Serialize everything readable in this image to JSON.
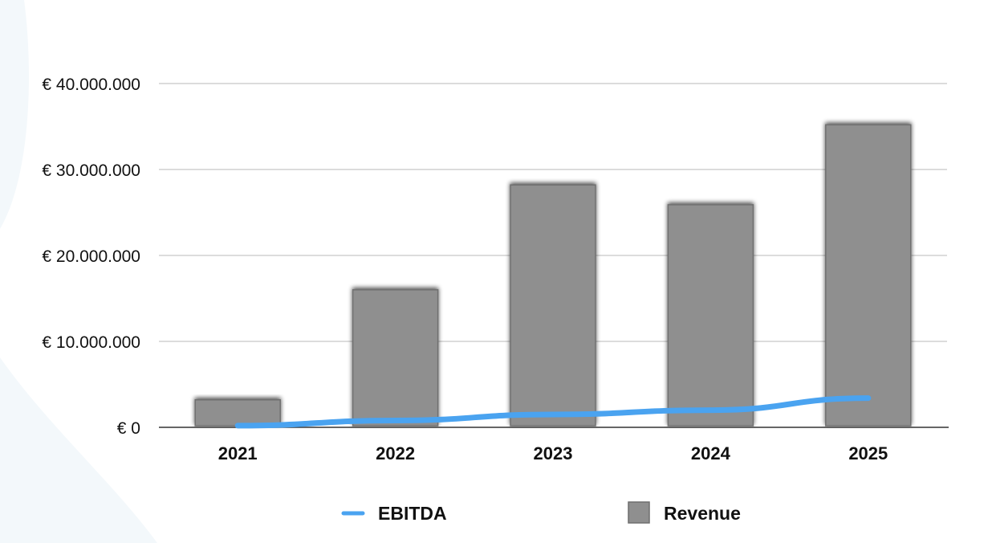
{
  "chart_data": {
    "type": "bar",
    "categories": [
      "2021",
      "2022",
      "2023",
      "2024",
      "2025"
    ],
    "series": [
      {
        "name": "Revenue",
        "kind": "bar",
        "color": "#8f8f8f",
        "values": [
          3200000,
          16000000,
          28200000,
          25900000,
          35200000
        ]
      },
      {
        "name": "EBITDA",
        "kind": "line",
        "color": "#4aa3f0",
        "values": [
          200000,
          800000,
          1500000,
          2000000,
          3400000
        ]
      }
    ],
    "ylim": [
      0,
      40000000
    ],
    "yticks": [
      0,
      10000000,
      20000000,
      30000000,
      40000000
    ],
    "ytick_labels": [
      "€ 0",
      "€ 10.000.000",
      "€ 20.000.000",
      "€ 30.000.000",
      "€ 40.000.000"
    ],
    "grid": true,
    "legend": {
      "position": "bottom",
      "entries": [
        "EBITDA",
        "Revenue"
      ]
    },
    "title": "",
    "xlabel": "",
    "ylabel": ""
  },
  "colors": {
    "background_shape": "#f3f8fb",
    "gridline": "#c8c8c8",
    "axis": "#333333",
    "bar_stroke": "#6f6f6f",
    "line": "#4aa3f0"
  }
}
